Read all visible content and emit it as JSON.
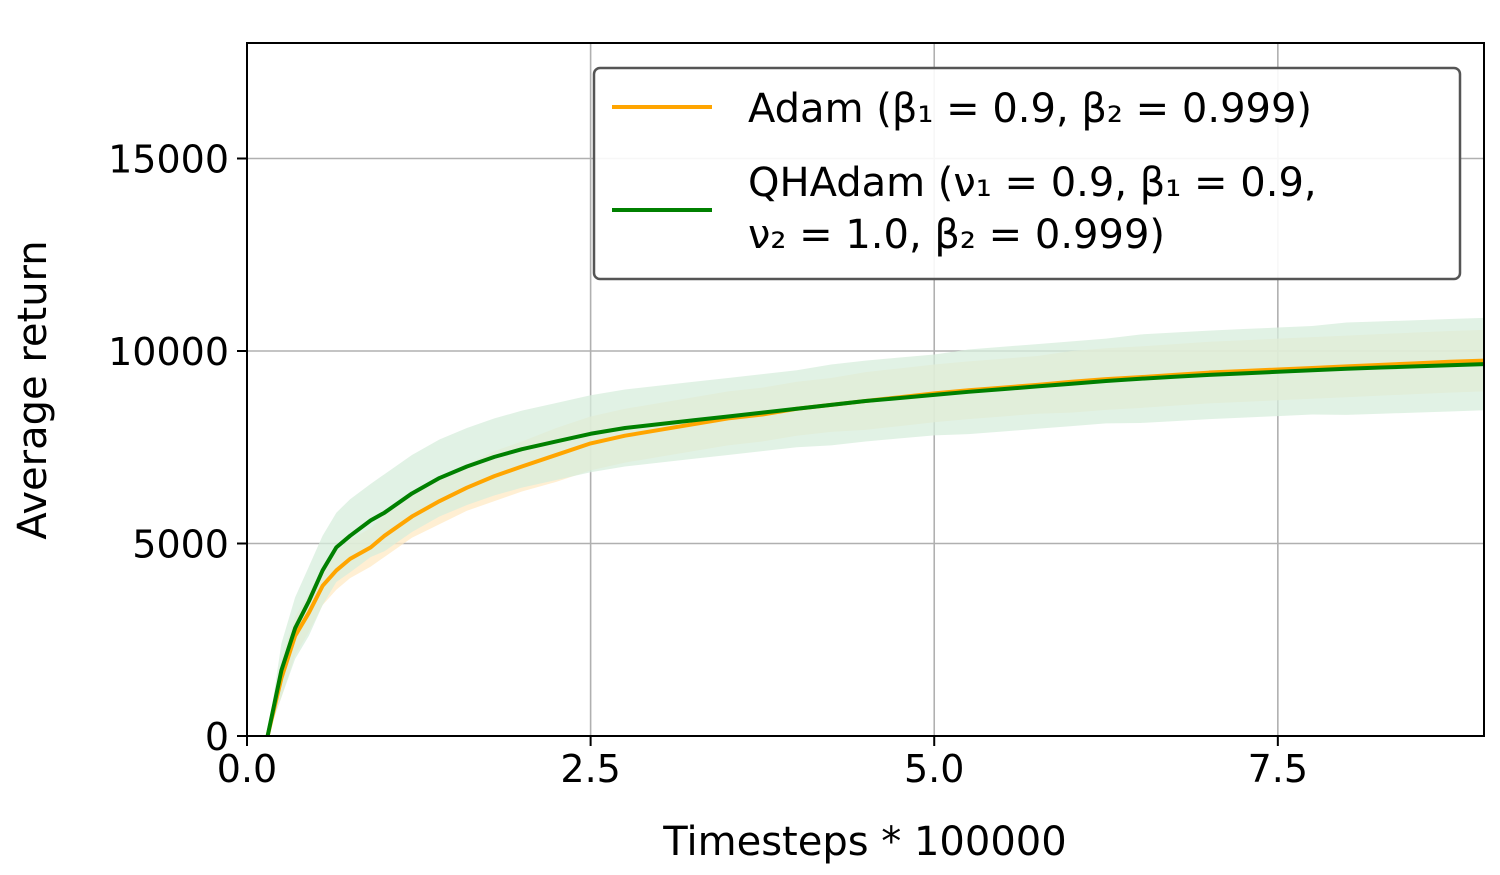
{
  "chart_data": {
    "type": "line",
    "title": "",
    "xlabel": "Timesteps * 100000",
    "ylabel": "Average return",
    "xlim": [
      0.0,
      9.0
    ],
    "ylim": [
      0,
      18000
    ],
    "x_ticks": [
      0.0,
      2.5,
      5.0,
      7.5
    ],
    "x_tick_labels": [
      "0.0",
      "2.5",
      "5.0",
      "7.5"
    ],
    "y_ticks": [
      0,
      5000,
      10000,
      15000
    ],
    "y_tick_labels": [
      "0",
      "5000",
      "10000",
      "15000"
    ],
    "grid": true,
    "legend_position": "top-right",
    "series": [
      {
        "name": "Adam (β₁ = 0.9, β₂ = 0.999)",
        "color": "#FFA500",
        "band_color": "#FFE9C4",
        "x": [
          0.15,
          0.25,
          0.35,
          0.45,
          0.55,
          0.65,
          0.75,
          0.9,
          1.0,
          1.2,
          1.4,
          1.6,
          1.8,
          2.0,
          2.25,
          2.5,
          2.75,
          3.0,
          3.25,
          3.5,
          3.75,
          4.0,
          4.25,
          4.5,
          4.75,
          5.0,
          5.25,
          5.5,
          5.75,
          6.0,
          6.25,
          6.5,
          6.75,
          7.0,
          7.25,
          7.5,
          7.75,
          8.0,
          8.25,
          8.5,
          8.75,
          9.0
        ],
        "y": [
          0,
          1500,
          2600,
          3200,
          3900,
          4300,
          4600,
          4900,
          5200,
          5700,
          6100,
          6450,
          6750,
          7000,
          7300,
          7600,
          7800,
          7950,
          8100,
          8250,
          8350,
          8500,
          8600,
          8700,
          8800,
          8900,
          8980,
          9050,
          9120,
          9200,
          9270,
          9320,
          9380,
          9440,
          9480,
          9520,
          9560,
          9600,
          9640,
          9680,
          9720,
          9750
        ],
        "band": [
          0,
          500,
          500,
          500,
          500,
          500,
          500,
          500,
          550,
          550,
          600,
          600,
          650,
          650,
          700,
          700,
          700,
          700,
          700,
          700,
          700,
          700,
          700,
          750,
          750,
          750,
          750,
          750,
          750,
          800,
          800,
          800,
          800,
          800,
          800,
          800,
          800,
          800,
          800,
          800,
          800,
          800
        ]
      },
      {
        "name": "QHAdam (ν₁ = 0.9, β₁ = 0.9, ν₂ = 1.0, β₂ = 0.999)",
        "color": "#008000",
        "band_color": "#D7EDDC",
        "x": [
          0.15,
          0.25,
          0.35,
          0.45,
          0.55,
          0.65,
          0.75,
          0.9,
          1.0,
          1.2,
          1.4,
          1.6,
          1.8,
          2.0,
          2.25,
          2.5,
          2.75,
          3.0,
          3.25,
          3.5,
          3.75,
          4.0,
          4.25,
          4.5,
          4.75,
          5.0,
          5.25,
          5.5,
          5.75,
          6.0,
          6.25,
          6.5,
          6.75,
          7.0,
          7.25,
          7.5,
          7.75,
          8.0,
          8.25,
          8.5,
          8.75,
          9.0
        ],
        "y": [
          0,
          1700,
          2800,
          3500,
          4300,
          4900,
          5200,
          5600,
          5800,
          6300,
          6700,
          7000,
          7250,
          7450,
          7650,
          7850,
          8000,
          8100,
          8200,
          8300,
          8400,
          8500,
          8600,
          8700,
          8780,
          8860,
          8940,
          9010,
          9080,
          9150,
          9220,
          9280,
          9330,
          9380,
          9420,
          9460,
          9500,
          9540,
          9570,
          9600,
          9630,
          9660
        ],
        "band": [
          0,
          700,
          800,
          900,
          900,
          900,
          950,
          950,
          1000,
          1000,
          1000,
          1000,
          1000,
          1000,
          1000,
          1000,
          1000,
          1000,
          1000,
          1000,
          1000,
          1000,
          1050,
          1050,
          1050,
          1050,
          1100,
          1100,
          1100,
          1100,
          1100,
          1150,
          1150,
          1150,
          1150,
          1150,
          1150,
          1200,
          1200,
          1200,
          1200,
          1200
        ]
      }
    ]
  }
}
